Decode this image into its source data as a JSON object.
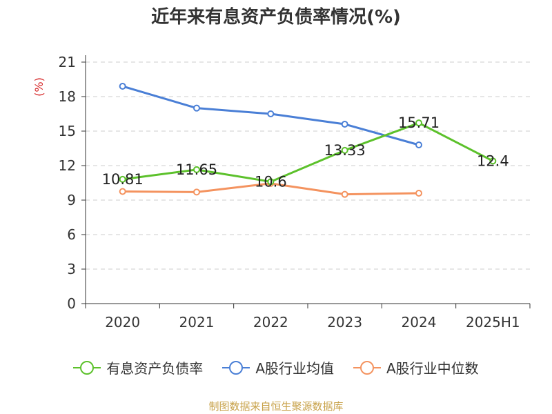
{
  "chart_data": {
    "type": "line",
    "title": "近年来有息资产负债率情况(%)",
    "ylabel": "(%)",
    "xlabel": "",
    "categories": [
      "2020",
      "2021",
      "2022",
      "2023",
      "2024",
      "2025H1"
    ],
    "ylim": [
      0,
      21
    ],
    "yticks": [
      0,
      3,
      6,
      9,
      12,
      15,
      18,
      21
    ],
    "grid": true,
    "legend_position": "bottom",
    "series": [
      {
        "name": "有息资产负债率",
        "color": "#5cc12b",
        "values": [
          10.81,
          11.65,
          10.6,
          13.33,
          15.71,
          12.4
        ],
        "labels": [
          "10.81",
          "11.65",
          "10.6",
          "13.33",
          "15.71",
          "12.4"
        ]
      },
      {
        "name": "A股行业均值",
        "color": "#4a7fd6",
        "values": [
          18.9,
          17.0,
          16.5,
          15.6,
          13.8,
          null
        ]
      },
      {
        "name": "A股行业中位数",
        "color": "#f4935f",
        "values": [
          9.75,
          9.7,
          10.45,
          9.5,
          9.6,
          null
        ]
      }
    ],
    "source": "制图数据来自恒生聚源数据库"
  }
}
